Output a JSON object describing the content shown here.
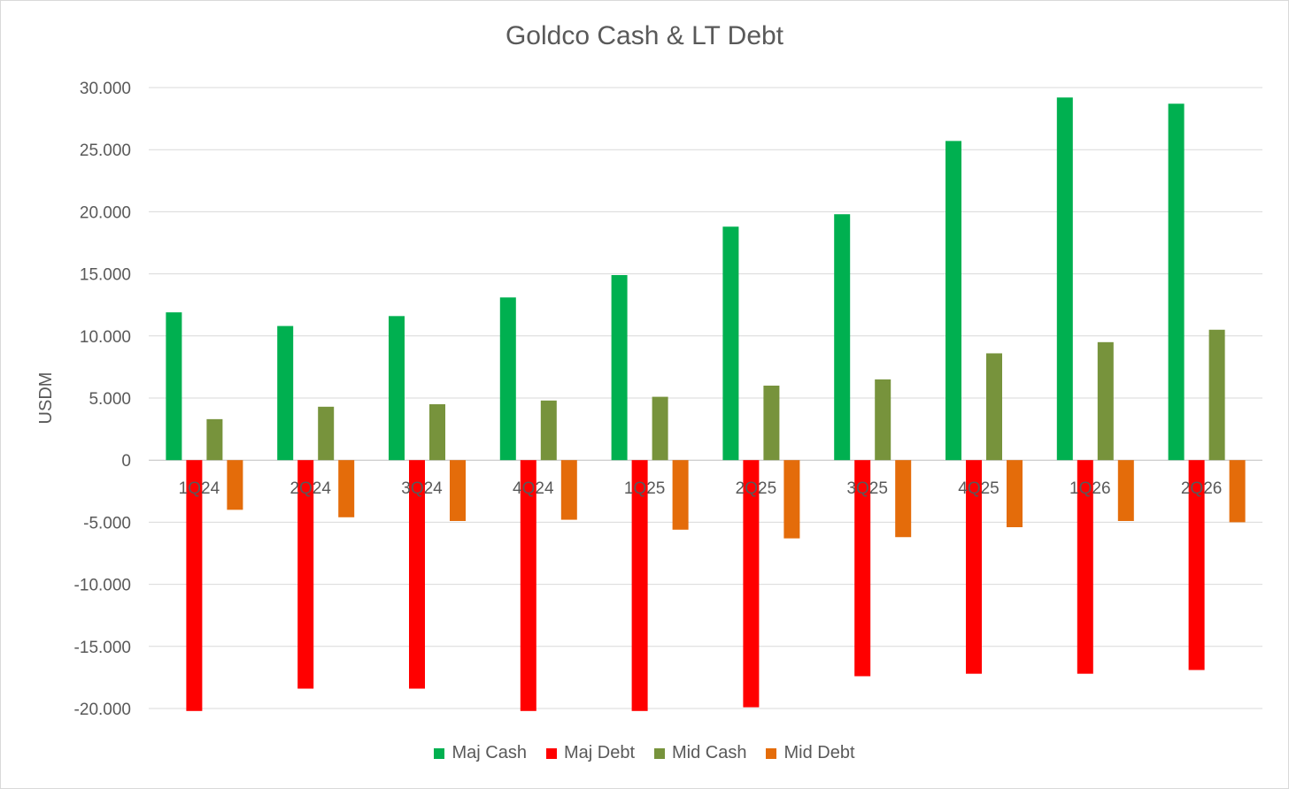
{
  "chart_data": {
    "type": "bar",
    "title": "Goldco Cash & LT Debt",
    "xlabel": "",
    "ylabel": "USDM",
    "ylim": [
      -20000,
      30000
    ],
    "yticks": [
      30000,
      25000,
      20000,
      15000,
      10000,
      5000,
      0,
      -5000,
      -10000,
      -15000,
      -20000
    ],
    "ytick_labels": [
      "30.000",
      "25.000",
      "20.000",
      "15.000",
      "10.000",
      "5.000",
      "0",
      "-5.000",
      "-10.000",
      "-15.000",
      "-20.000"
    ],
    "grid": true,
    "legend_position": "bottom",
    "categories": [
      "1Q24",
      "2Q24",
      "3Q24",
      "4Q24",
      "1Q25",
      "2Q25",
      "3Q25",
      "4Q25",
      "1Q26",
      "2Q26"
    ],
    "series": [
      {
        "name": "Maj Cash",
        "color": "#00b050",
        "values": [
          11900,
          10800,
          11600,
          13100,
          14900,
          18800,
          19800,
          25700,
          29200,
          28700
        ]
      },
      {
        "name": "Maj Debt",
        "color": "#ff0000",
        "values": [
          -20200,
          -18400,
          -18400,
          -20200,
          -20200,
          -19900,
          -17400,
          -17200,
          -17200,
          -16900
        ]
      },
      {
        "name": "Mid Cash",
        "color": "#77933c",
        "values": [
          3300,
          4300,
          4500,
          4800,
          5100,
          6000,
          6500,
          8600,
          9500,
          10500
        ]
      },
      {
        "name": "Mid Debt",
        "color": "#e46c0a",
        "values": [
          -4000,
          -4600,
          -4900,
          -4800,
          -5600,
          -6300,
          -6200,
          -5400,
          -4900,
          -5000
        ]
      }
    ]
  }
}
